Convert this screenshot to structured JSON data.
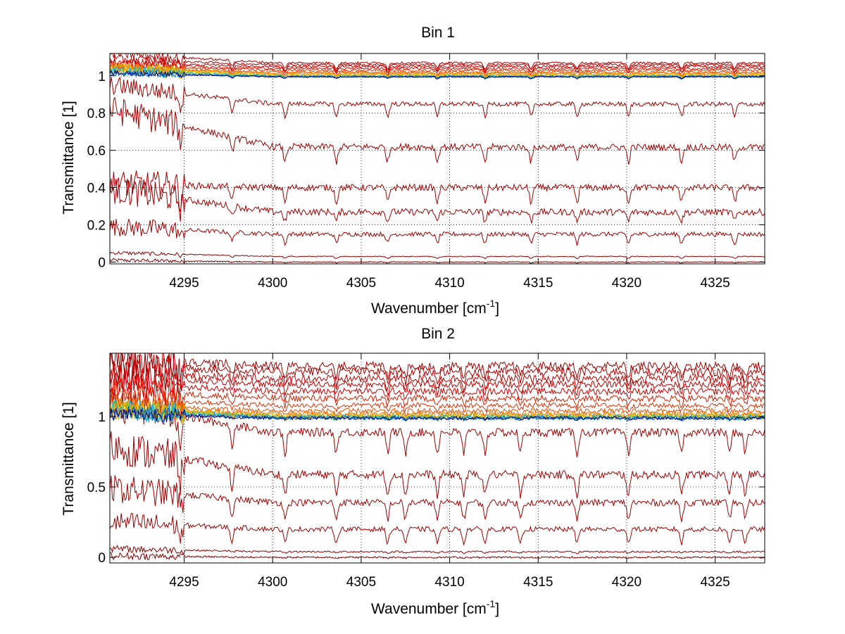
{
  "chart_data": [
    {
      "type": "line",
      "title": "Bin 1",
      "xlabel": "Wavenumber [cm",
      "xlabel_superscript": "-1",
      "xlabel_close": "]",
      "ylabel": "Transmittance [1]",
      "xlim": [
        4290.8,
        4327.8
      ],
      "ylim": [
        -0.01,
        1.12
      ],
      "xticks": [
        4295,
        4300,
        4305,
        4310,
        4315,
        4320,
        4325
      ],
      "xtick_labels": [
        "4295",
        "4300",
        "4305",
        "4310",
        "4315",
        "4320",
        "4325"
      ],
      "yticks": [
        0,
        0.2,
        0.4,
        0.6,
        0.8,
        1
      ],
      "ytick_labels": [
        "0",
        "0.2",
        "0.4",
        "0.6",
        "0.8",
        "1"
      ],
      "grid": true,
      "line_positions": [
        4294.8,
        4297.7,
        4300.7,
        4303.6,
        4306.5,
        4309.3,
        4312.0,
        4314.6,
        4317.2,
        4320.1,
        4323.1,
        4326.1
      ],
      "series": [
        {
          "color": "#8b0000",
          "baseline": 0.0,
          "trend": 0.01,
          "depth": 0.005,
          "noise": 0.004
        },
        {
          "color": "#8b0000",
          "baseline": 0.03,
          "trend": 0.02,
          "depth": 0.01,
          "noise": 0.004
        },
        {
          "color": "#a00000",
          "baseline": 0.15,
          "trend": 0.04,
          "depth": 0.05,
          "noise": 0.02
        },
        {
          "color": "#a00000",
          "baseline": 0.27,
          "trend": 0.12,
          "depth": 0.05,
          "noise": 0.03
        },
        {
          "color": "#a00000",
          "baseline": 0.4,
          "trend": 0.02,
          "depth": 0.08,
          "noise": 0.03
        },
        {
          "color": "#a00000",
          "baseline": 0.62,
          "trend": 0.2,
          "depth": 0.08,
          "noise": 0.03
        },
        {
          "color": "#a00000",
          "baseline": 0.85,
          "trend": 0.1,
          "depth": 0.07,
          "noise": 0.02
        },
        {
          "color": "#b00000",
          "baseline": 1.07,
          "trend": 0.05,
          "depth": 0.03,
          "noise": 0.01
        },
        {
          "color": "#c00000",
          "baseline": 1.06,
          "trend": 0.03,
          "depth": 0.03,
          "noise": 0.01
        },
        {
          "color": "#d00000",
          "baseline": 1.05,
          "trend": 0.02,
          "depth": 0.03,
          "noise": 0.01
        },
        {
          "color": "#e01000",
          "baseline": 1.04,
          "trend": 0.02,
          "depth": 0.02,
          "noise": 0.01
        },
        {
          "color": "#e83000",
          "baseline": 1.03,
          "trend": 0.02,
          "depth": 0.02,
          "noise": 0.01
        },
        {
          "color": "#f05000",
          "baseline": 1.02,
          "trend": 0.02,
          "depth": 0.02,
          "noise": 0.01
        },
        {
          "color": "#f07000",
          "baseline": 1.015,
          "trend": 0.03,
          "depth": 0.015,
          "noise": 0.01
        },
        {
          "color": "#f09000",
          "baseline": 1.01,
          "trend": 0.03,
          "depth": 0.015,
          "noise": 0.01
        },
        {
          "color": "#f0b000",
          "baseline": 1.005,
          "trend": 0.04,
          "depth": 0.01,
          "noise": 0.012
        },
        {
          "color": "#e0c000",
          "baseline": 1.0,
          "trend": 0.04,
          "depth": 0.01,
          "noise": 0.012
        },
        {
          "color": "#80c040",
          "baseline": 1.0,
          "trend": 0.03,
          "depth": 0.01,
          "noise": 0.012
        },
        {
          "color": "#00b0e0",
          "baseline": 0.998,
          "trend": 0.03,
          "depth": 0.01,
          "noise": 0.01
        },
        {
          "color": "#0060c0",
          "baseline": 0.996,
          "trend": 0.02,
          "depth": 0.01,
          "noise": 0.008
        },
        {
          "color": "#000080",
          "baseline": 0.995,
          "trend": 0.02,
          "depth": 0.01,
          "noise": 0.006
        }
      ]
    },
    {
      "type": "line",
      "title": "Bin 2",
      "xlabel": "Wavenumber [cm",
      "xlabel_superscript": "-1",
      "xlabel_close": "]",
      "ylabel": "Transmittance [1]",
      "xlim": [
        4290.8,
        4327.8
      ],
      "ylim": [
        -0.04,
        1.45
      ],
      "xticks": [
        4295,
        4300,
        4305,
        4310,
        4315,
        4320,
        4325
      ],
      "xtick_labels": [
        "4295",
        "4300",
        "4305",
        "4310",
        "4315",
        "4320",
        "4325"
      ],
      "yticks": [
        0,
        0.5,
        1
      ],
      "ytick_labels": [
        "0",
        "0.5",
        "1"
      ],
      "grid": true,
      "line_positions": [
        4294.8,
        4297.7,
        4300.7,
        4303.6,
        4306.5,
        4307.5,
        4309.3,
        4310.8,
        4312.0,
        4314.0,
        4317.2,
        4320.1,
        4323.1,
        4325.8,
        4326.7
      ],
      "series": [
        {
          "color": "#8b0000",
          "baseline": 0.0,
          "trend": 0.01,
          "depth": 0.005,
          "noise": 0.01
        },
        {
          "color": "#8b0000",
          "baseline": 0.04,
          "trend": 0.02,
          "depth": 0.01,
          "noise": 0.01
        },
        {
          "color": "#a00000",
          "baseline": 0.2,
          "trend": 0.05,
          "depth": 0.1,
          "noise": 0.03
        },
        {
          "color": "#a00000",
          "baseline": 0.39,
          "trend": 0.1,
          "depth": 0.12,
          "noise": 0.04
        },
        {
          "color": "#a00000",
          "baseline": 0.59,
          "trend": 0.2,
          "depth": 0.15,
          "noise": 0.05
        },
        {
          "color": "#a00000",
          "baseline": 0.89,
          "trend": 0.2,
          "depth": 0.15,
          "noise": 0.05
        },
        {
          "color": "#a00000",
          "baseline": 1.36,
          "trend": 0.05,
          "depth": 0.08,
          "noise": 0.05
        },
        {
          "color": "#b00000",
          "baseline": 1.32,
          "trend": 0.05,
          "depth": 0.08,
          "noise": 0.05
        },
        {
          "color": "#c00000",
          "baseline": 1.27,
          "trend": 0.05,
          "depth": 0.07,
          "noise": 0.05
        },
        {
          "color": "#c00000",
          "baseline": 1.23,
          "trend": 0.05,
          "depth": 0.06,
          "noise": 0.04
        },
        {
          "color": "#d00000",
          "baseline": 1.18,
          "trend": 0.05,
          "depth": 0.05,
          "noise": 0.04
        },
        {
          "color": "#d82000",
          "baseline": 1.13,
          "trend": 0.05,
          "depth": 0.05,
          "noise": 0.04
        },
        {
          "color": "#e03000",
          "baseline": 1.08,
          "trend": 0.05,
          "depth": 0.04,
          "noise": 0.03
        },
        {
          "color": "#e85000",
          "baseline": 1.04,
          "trend": 0.04,
          "depth": 0.03,
          "noise": 0.03
        },
        {
          "color": "#f07000",
          "baseline": 1.02,
          "trend": 0.04,
          "depth": 0.02,
          "noise": 0.03
        },
        {
          "color": "#f09000",
          "baseline": 1.01,
          "trend": 0.05,
          "depth": 0.02,
          "noise": 0.03
        },
        {
          "color": "#f0b000",
          "baseline": 1.005,
          "trend": 0.05,
          "depth": 0.015,
          "noise": 0.03
        },
        {
          "color": "#e0c000",
          "baseline": 1.0,
          "trend": 0.05,
          "depth": 0.01,
          "noise": 0.03
        },
        {
          "color": "#80c040",
          "baseline": 1.0,
          "trend": 0.05,
          "depth": 0.01,
          "noise": 0.03
        },
        {
          "color": "#00b0e0",
          "baseline": 0.995,
          "trend": 0.05,
          "depth": 0.01,
          "noise": 0.03
        },
        {
          "color": "#0060c0",
          "baseline": 0.99,
          "trend": 0.04,
          "depth": 0.01,
          "noise": 0.02
        },
        {
          "color": "#000080",
          "baseline": 0.99,
          "trend": 0.03,
          "depth": 0.01,
          "noise": 0.02
        }
      ]
    }
  ]
}
